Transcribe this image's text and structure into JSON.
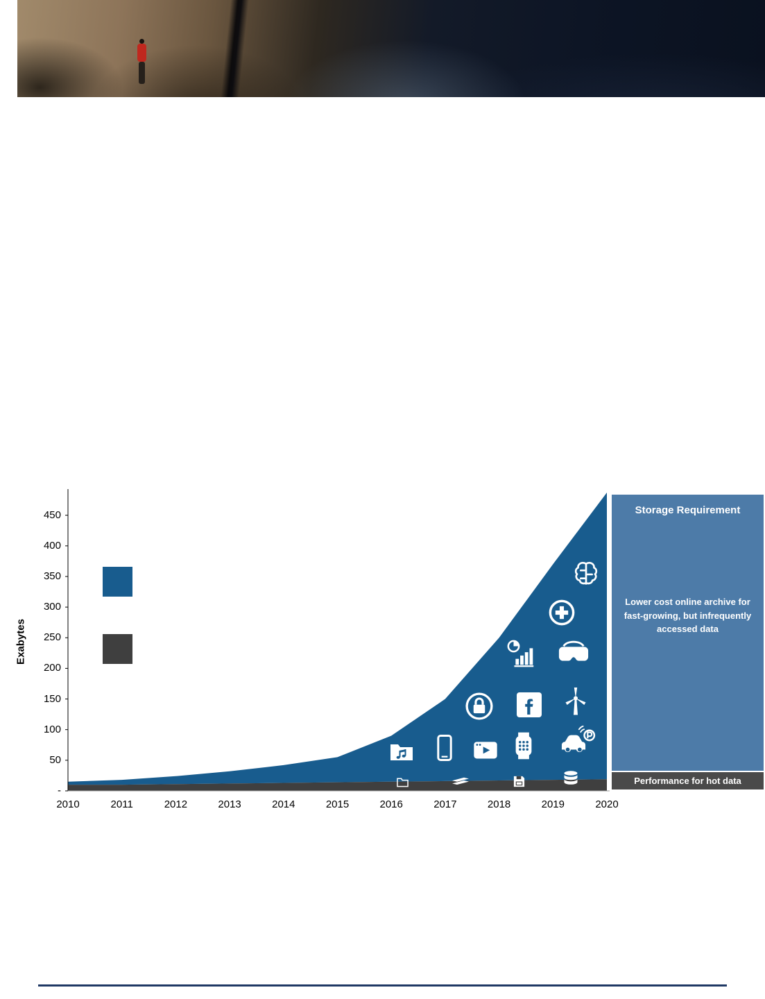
{
  "banner": {
    "description": "Photo of a free-solo climber in a red shirt on a granite cliff above a dark mountain valley"
  },
  "chart": {
    "ylabel": "Exabytes",
    "y_ticks": [
      {
        "label": "-",
        "value": 0
      },
      {
        "label": "50",
        "value": 50
      },
      {
        "label": "100",
        "value": 100
      },
      {
        "label": "150",
        "value": 150
      },
      {
        "label": "200",
        "value": 200
      },
      {
        "label": "250",
        "value": 250
      },
      {
        "label": "300",
        "value": 300
      },
      {
        "label": "350",
        "value": 350
      },
      {
        "label": "400",
        "value": 400
      },
      {
        "label": "450",
        "value": 450
      }
    ],
    "x_ticks": [
      "2010",
      "2011",
      "2012",
      "2013",
      "2014",
      "2015",
      "2016",
      "2017",
      "2018",
      "2019",
      "2020"
    ]
  },
  "chart_data": {
    "type": "area",
    "stacked": true,
    "x": [
      2010,
      2011,
      2012,
      2013,
      2014,
      2015,
      2016,
      2017,
      2018,
      2019,
      2020
    ],
    "series": [
      {
        "name": "Performance for hot data",
        "color": "#3f3f3f",
        "values": [
          10,
          10,
          11,
          12,
          13,
          14,
          15,
          16,
          17,
          18,
          19
        ]
      },
      {
        "name": "Lower cost online archive for fast-growing, but infrequently accessed data",
        "color": "#185c8e",
        "values": [
          5,
          8,
          13,
          20,
          29,
          41,
          75,
          134,
          233,
          352,
          468
        ]
      }
    ],
    "title": "Storage Requirement",
    "xlabel": "",
    "ylabel": "Exabytes",
    "ylim": [
      0,
      487
    ],
    "grid": false,
    "legend_position": "right-panel"
  },
  "panel": {
    "title": "Storage Requirement",
    "body": "Lower cost online archive for fast-growing, but infrequently accessed data",
    "footer": "Performance for hot data",
    "background": "#4d7ba8",
    "footer_background": "#4a4a4a"
  },
  "colors": {
    "archive_blue": "#185c8e",
    "hot_gray": "#3f3f3f",
    "panel_blue": "#4d7ba8",
    "divider_navy": "#1f3864"
  },
  "icons": [
    "brain-icon",
    "healthcare-icon",
    "analytics-icon",
    "vr-headset-icon",
    "security-lock-icon",
    "facebook-icon",
    "wind-turbine-icon",
    "music-folder-icon",
    "smartphone-icon",
    "video-streaming-icon",
    "smartwatch-icon",
    "connected-car-icon",
    "folder-icon",
    "tape-cartridge-icon",
    "floppy-disk-icon",
    "database-icon"
  ]
}
